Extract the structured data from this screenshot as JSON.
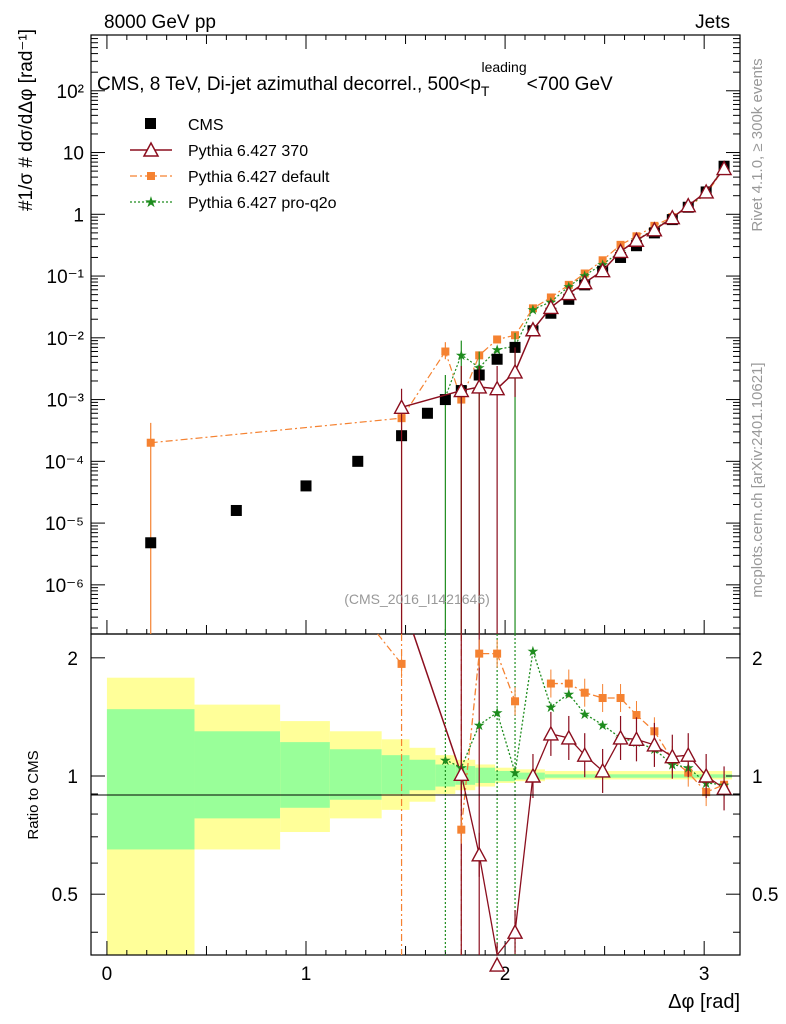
{
  "header": {
    "left": "8000 GeV pp",
    "right": "Jets"
  },
  "side_labels": {
    "rivet": "Rivet 4.1.0, ≥ 300k events",
    "mcplots": "mcplots.cern.ch [arXiv:2401.10621]"
  },
  "chart_data": {
    "type": "scatter",
    "title": "CMS, 8 TeV, Di-jet azimuthal decorrel., 500<p_T^leading<700 GeV",
    "title_parts": {
      "main": "CMS, 8 TeV, Di-jet azimuthal decorrel., 500<p",
      "sub": "T",
      "sup": "leading",
      "tail": "<700 GeV"
    },
    "watermark": "(CMS_2016_I1421646)",
    "xlabel": "Δφ [rad]",
    "ylabel": "#1/σ # dσ/dΔφ [rad⁻¹]",
    "ratio_ylabel": "Ratio to CMS",
    "xlim": [
      -0.08,
      3.18
    ],
    "ylim_main": [
      1.6e-07,
      800
    ],
    "ylim_ratio": [
      0.35,
      2.3
    ],
    "x_ticks": [
      "0",
      "1",
      "2",
      "3"
    ],
    "y_ticks_main": [
      "10⁻⁶",
      "10⁻⁵",
      "10⁻⁴",
      "10⁻³",
      "10⁻²",
      "10⁻¹",
      "1",
      "10",
      "10²"
    ],
    "y_ticks_ratio": [
      "0.5",
      "1",
      "2"
    ],
    "legend_position": "top-left",
    "x": [
      0.22,
      0.65,
      1.0,
      1.26,
      1.48,
      1.61,
      1.7,
      1.78,
      1.87,
      1.96,
      2.05,
      2.14,
      2.23,
      2.32,
      2.4,
      2.49,
      2.58,
      2.66,
      2.75,
      2.84,
      2.92,
      3.01,
      3.1
    ],
    "series": [
      {
        "name": "CMS",
        "style": "black-square",
        "values": [
          4.8e-06,
          1.6e-05,
          4e-05,
          0.0001,
          0.00026,
          0.0006,
          0.001,
          0.0014,
          0.0025,
          0.0045,
          0.007,
          0.013,
          0.025,
          0.042,
          0.072,
          0.12,
          0.2,
          0.31,
          0.5,
          0.82,
          1.3,
          2.3,
          6.0
        ]
      },
      {
        "name": "Pythia 6.427 370",
        "style": "red-triangle",
        "x": [
          1.48,
          1.78,
          1.87,
          1.96,
          2.05,
          2.14,
          2.23,
          2.32,
          2.4,
          2.49,
          2.58,
          2.66,
          2.75,
          2.84,
          2.92,
          3.01,
          3.1
        ],
        "values": [
          0.00075,
          0.0014,
          0.0016,
          0.0015,
          0.0028,
          0.0135,
          0.031,
          0.052,
          0.078,
          0.122,
          0.25,
          0.38,
          0.56,
          0.88,
          1.38,
          2.3,
          5.5
        ],
        "ratio": [
          null,
          1.01,
          0.63,
          0.33,
          0.4,
          1.0,
          1.28,
          1.25,
          1.13,
          1.03,
          1.25,
          1.24,
          1.2,
          1.12,
          1.13,
          1.0,
          0.93
        ]
      },
      {
        "name": "Pythia 6.427 default",
        "style": "orange-square",
        "x": [
          0.22,
          1.48,
          1.7,
          1.78,
          1.87,
          1.96,
          2.05,
          2.14,
          2.23,
          2.32,
          2.4,
          2.49,
          2.58,
          2.66,
          2.75,
          2.84,
          2.92,
          3.01,
          3.1
        ],
        "values": [
          0.0002,
          0.0005,
          0.006,
          0.001,
          0.0052,
          0.0094,
          0.011,
          0.03,
          0.045,
          0.072,
          0.11,
          0.18,
          0.32,
          0.44,
          0.65,
          0.9,
          1.33,
          2.1,
          5.6
        ],
        "ratio": [
          null,
          1.93,
          null,
          0.73,
          2.05,
          2.05,
          1.55,
          null,
          1.72,
          1.72,
          1.63,
          1.58,
          1.58,
          1.43,
          1.3,
          1.1,
          1.02,
          0.91,
          0.95
        ]
      },
      {
        "name": "Pythia 6.427 pro-q2o",
        "style": "green-star",
        "x": [
          1.7,
          1.78,
          1.87,
          1.96,
          2.05,
          2.14,
          2.23,
          2.32,
          2.4,
          2.49,
          2.58,
          2.66,
          2.75,
          2.84,
          2.92,
          3.01,
          3.1
        ],
        "values": [
          0.0011,
          0.0053,
          0.0033,
          0.0065,
          0.0073,
          0.029,
          0.038,
          0.068,
          0.103,
          0.155,
          0.25,
          0.38,
          0.58,
          0.88,
          1.35,
          2.2,
          5.9
        ],
        "ratio": [
          1.1,
          1.05,
          1.35,
          1.45,
          1.02,
          2.08,
          1.5,
          1.62,
          1.44,
          1.35,
          1.25,
          1.22,
          1.17,
          1.07,
          1.05,
          0.96,
          0.95
        ]
      }
    ],
    "uncertainty_bands": {
      "edges": [
        0.0,
        0.44,
        0.87,
        1.12,
        1.38,
        1.52,
        1.65,
        1.75,
        1.85,
        1.95,
        2.05,
        2.2,
        3.14
      ],
      "yellow": [
        [
          0.35,
          1.78
        ],
        [
          0.65,
          1.52
        ],
        [
          0.72,
          1.38
        ],
        [
          0.78,
          1.3
        ],
        [
          0.82,
          1.24
        ],
        [
          0.86,
          1.18
        ],
        [
          0.9,
          1.13
        ],
        [
          0.92,
          1.1
        ],
        [
          0.94,
          1.07
        ],
        [
          0.96,
          1.05
        ],
        [
          0.97,
          1.04
        ],
        [
          0.98,
          1.03
        ]
      ],
      "green": [
        [
          0.65,
          1.48
        ],
        [
          0.78,
          1.3
        ],
        [
          0.83,
          1.22
        ],
        [
          0.87,
          1.17
        ],
        [
          0.9,
          1.13
        ],
        [
          0.92,
          1.1
        ],
        [
          0.94,
          1.07
        ],
        [
          0.95,
          1.06
        ],
        [
          0.96,
          1.05
        ],
        [
          0.97,
          1.03
        ],
        [
          0.98,
          1.02
        ],
        [
          0.99,
          1.01
        ]
      ]
    },
    "colors": {
      "cms": "#000000",
      "p370": "#8b0e1e",
      "default": "#f58231",
      "proq2o": "#1e8c1e",
      "yellow": "#ffff99",
      "green": "#99ff99"
    }
  }
}
